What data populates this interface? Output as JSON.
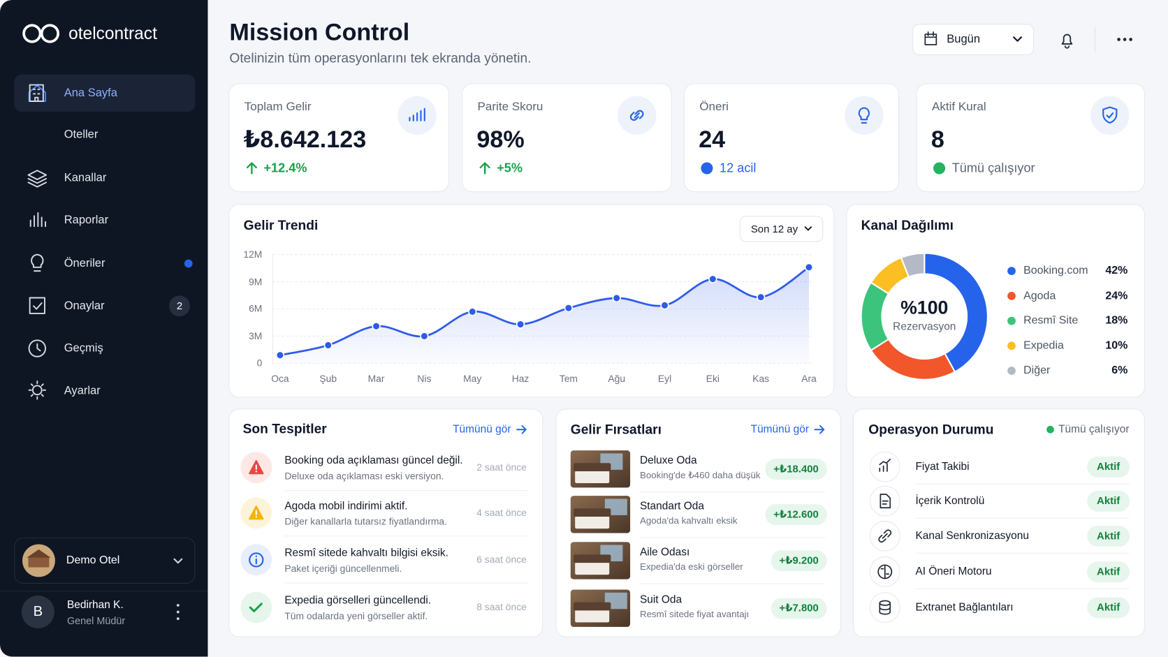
{
  "sidebar": {
    "brand": "otelcontract",
    "nav": [
      {
        "label": "Ana Sayfa"
      },
      {
        "label": "Oteller"
      },
      {
        "label": "Kanallar"
      },
      {
        "label": "Raporlar"
      },
      {
        "label": "Öneriler"
      },
      {
        "label": "Onaylar",
        "badge": "2"
      },
      {
        "label": "Geçmiş"
      },
      {
        "label": "Ayarlar"
      }
    ],
    "hotel": "Demo Otel",
    "user": {
      "initial": "B",
      "name": "Bedirhan K.",
      "role": "Genel Müdür"
    }
  },
  "header": {
    "title": "Mission Control",
    "subtitle": "Otelinizin tüm operasyonlarını tek ekranda yönetin.",
    "date_filter": "Bugün"
  },
  "kpis": [
    {
      "label": "Toplam Gelir",
      "value": "₺8.642.123",
      "delta": "+12.4%"
    },
    {
      "label": "Parite Skoru",
      "value": "98%",
      "delta": "+5%"
    },
    {
      "label": "Öneri",
      "value": "24",
      "note": "12 acil"
    },
    {
      "label": "Aktif Kural",
      "value": "8",
      "note": "Tümü çalışıyor"
    }
  ],
  "chart_data": [
    {
      "type": "line",
      "title": "Gelir Trendi",
      "range_filter": "Son 12 ay",
      "categories": [
        "Oca",
        "Şub",
        "Mar",
        "Nis",
        "May",
        "Haz",
        "Tem",
        "Ağu",
        "Eyl",
        "Eki",
        "Kas",
        "Ara"
      ],
      "values": [
        0.9,
        2.0,
        4.1,
        3.0,
        5.7,
        4.3,
        6.1,
        7.2,
        6.4,
        9.3,
        7.3,
        10.6
      ],
      "color": "#2f5bea",
      "ylim": [
        0,
        12
      ],
      "yticks": [
        0,
        {
          "value": 3,
          "label": "3M"
        },
        {
          "value": 6,
          "label": "6M"
        },
        {
          "value": 9,
          "label": "9M"
        },
        {
          "value": 12,
          "label": "12M"
        }
      ],
      "grid": true
    },
    {
      "type": "pie",
      "title": "Kanal Dağılımı",
      "center_value": "%100",
      "center_label": "Rezervasyon",
      "categories": [
        "Booking.com",
        "Agoda",
        "Resmî Site",
        "Expedia",
        "Diğer"
      ],
      "values": [
        42,
        24,
        18,
        10,
        6
      ],
      "value_labels": [
        "42%",
        "24%",
        "18%",
        "10%",
        "6%"
      ],
      "colors": [
        "#2563eb",
        "#f2562b",
        "#3cc47c",
        "#fbbf24",
        "#b3bac6"
      ]
    }
  ],
  "detections": {
    "title": "Son Tespitler",
    "link": "Tümünü gör",
    "items": [
      {
        "title": "Booking oda açıklaması güncel değil.",
        "desc": "Deluxe oda açıklaması eski versiyon.",
        "time": "2 saat önce"
      },
      {
        "title": "Agoda mobil indirimi aktif.",
        "desc": "Diğer kanallarla tutarsız fiyatlandırma.",
        "time": "4 saat önce"
      },
      {
        "title": "Resmî sitede kahvaltı bilgisi eksik.",
        "desc": "Paket içeriği güncellenmeli.",
        "time": "6 saat önce"
      },
      {
        "title": "Expedia görselleri güncellendi.",
        "desc": "Tüm odalarda yeni görseller aktif.",
        "time": "8 saat önce"
      }
    ]
  },
  "opportunities": {
    "title": "Gelir Fırsatları",
    "link": "Tümünü gör",
    "items": [
      {
        "name": "Deluxe Oda",
        "desc": "Booking'de ₺460 daha düşük",
        "amount": "+₺18.400"
      },
      {
        "name": "Standart Oda",
        "desc": "Agoda'da kahvaltı eksik",
        "amount": "+₺12.600"
      },
      {
        "name": "Aile Odası",
        "desc": "Expedia'da eski görseller",
        "amount": "+₺9.200"
      },
      {
        "name": "Suit Oda",
        "desc": "Resmî sitede fiyat avantajı",
        "amount": "+₺7.800"
      }
    ]
  },
  "operations": {
    "title": "Operasyon Durumu",
    "status": "Tümü çalışıyor",
    "items": [
      {
        "name": "Fiyat Takibi",
        "status": "Aktif"
      },
      {
        "name": "İçerik Kontrolü",
        "status": "Aktif"
      },
      {
        "name": "Kanal Senkronizasyonu",
        "status": "Aktif"
      },
      {
        "name": "AI Öneri Motoru",
        "status": "Aktif"
      },
      {
        "name": "Extranet Bağlantıları",
        "status": "Aktif"
      }
    ]
  }
}
